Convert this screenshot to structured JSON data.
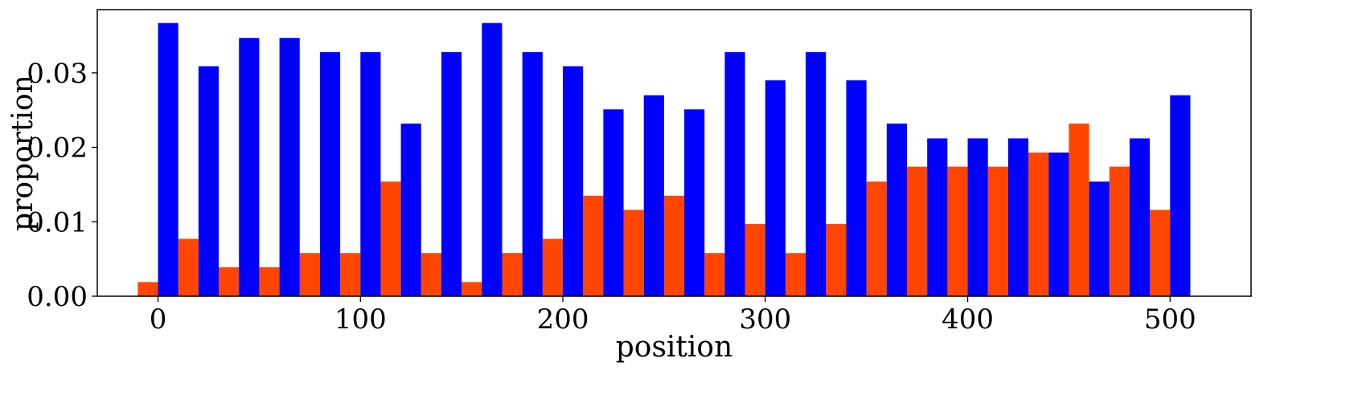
{
  "chart_data": {
    "type": "bar",
    "xlabel": "position",
    "ylabel": "proportion",
    "xlim": [
      -30,
      540
    ],
    "ylim": [
      0.0,
      0.0385
    ],
    "bin_width": 20,
    "x_ticks": [
      {
        "value": 0,
        "label": "0"
      },
      {
        "value": 100,
        "label": "100"
      },
      {
        "value": 200,
        "label": "200"
      },
      {
        "value": 300,
        "label": "300"
      },
      {
        "value": 400,
        "label": "400"
      },
      {
        "value": 500,
        "label": "500"
      }
    ],
    "y_ticks": [
      {
        "value": 0.0,
        "label": "0.00"
      },
      {
        "value": 0.01,
        "label": "0.01"
      },
      {
        "value": 0.02,
        "label": "0.02"
      },
      {
        "value": 0.03,
        "label": "0.03"
      }
    ],
    "bins": [
      0,
      20,
      40,
      60,
      80,
      100,
      120,
      140,
      160,
      180,
      200,
      220,
      240,
      260,
      280,
      300,
      320,
      340,
      360,
      380,
      400,
      420,
      440,
      460,
      480,
      500
    ],
    "series": [
      {
        "color": "#ff4500",
        "values": [
          0.0019,
          0.0077,
          0.0039,
          0.0039,
          0.0058,
          0.0058,
          0.0154,
          0.0058,
          0.0019,
          0.0058,
          0.0077,
          0.0135,
          0.0116,
          0.0135,
          0.0058,
          0.0097,
          0.0058,
          0.0097,
          0.0154,
          0.0174,
          0.0174,
          0.0174,
          0.0193,
          0.0232,
          0.0174,
          0.0116
        ]
      },
      {
        "color": "#0000ff",
        "values": [
          0.0367,
          0.0309,
          0.0347,
          0.0347,
          0.0328,
          0.0328,
          0.0232,
          0.0328,
          0.0367,
          0.0328,
          0.0309,
          0.0251,
          0.027,
          0.0251,
          0.0328,
          0.029,
          0.0328,
          0.029,
          0.0232,
          0.0212,
          0.0212,
          0.0212,
          0.0193,
          0.0154,
          0.0212,
          0.027
        ]
      }
    ],
    "grid": false,
    "legend": "none"
  }
}
